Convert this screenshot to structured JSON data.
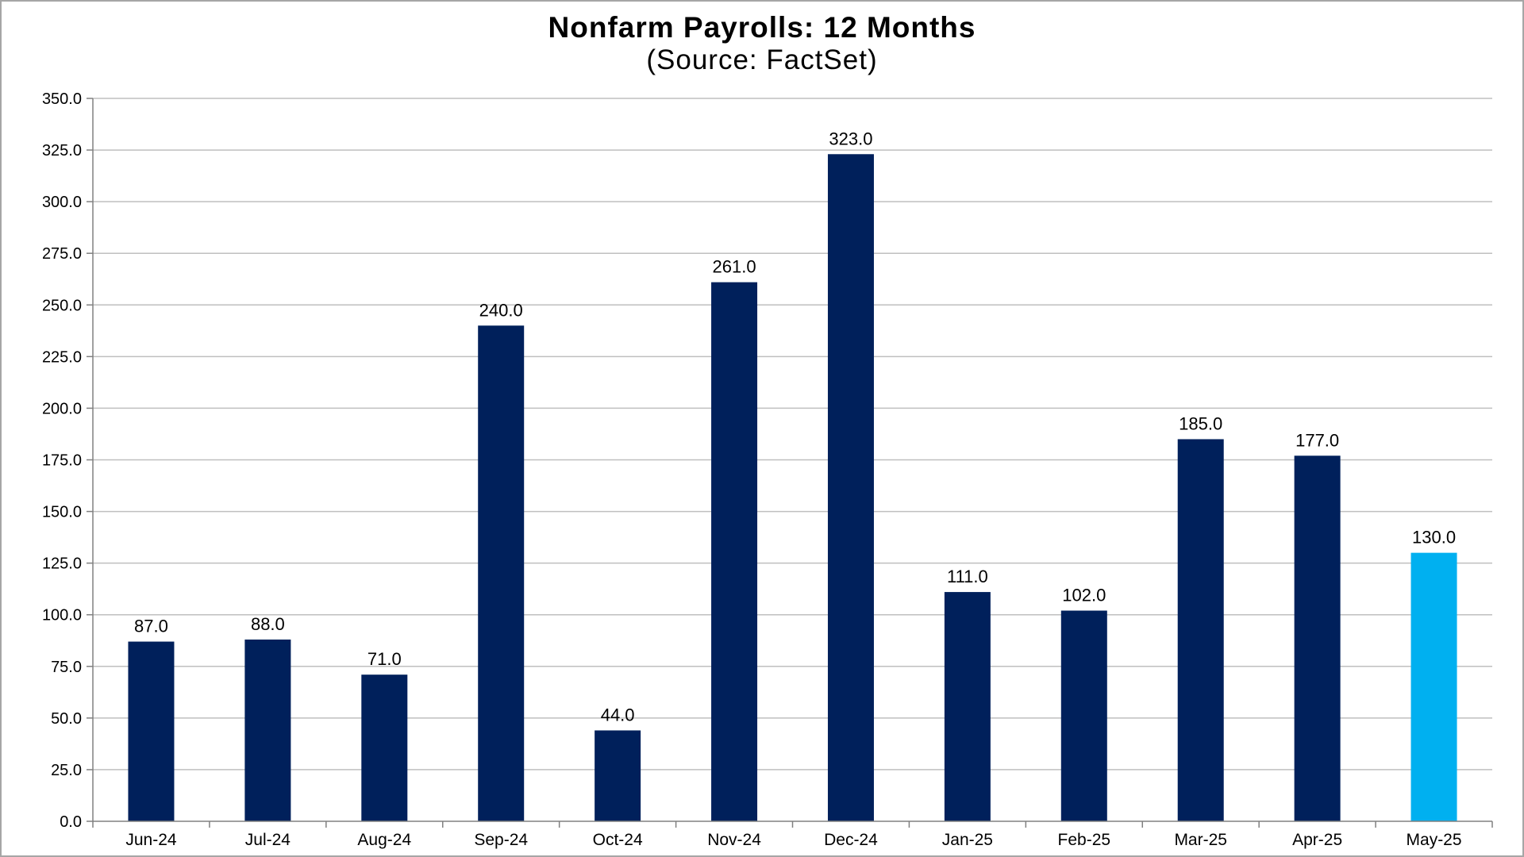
{
  "chart_data": {
    "type": "bar",
    "title": "Nonfarm Payrolls: 12 Months",
    "subtitle": "(Source: FactSet)",
    "xlabel": "",
    "ylabel": "",
    "ylim": [
      0,
      350
    ],
    "y_tick_step": 25,
    "y_tick_labels": [
      "0.0",
      "25.0",
      "50.0",
      "75.0",
      "100.0",
      "125.0",
      "150.0",
      "175.0",
      "200.0",
      "225.0",
      "250.0",
      "275.0",
      "300.0",
      "325.0",
      "350.0"
    ],
    "grid": true,
    "legend": "none",
    "categories": [
      "Jun-24",
      "Jul-24",
      "Aug-24",
      "Sep-24",
      "Oct-24",
      "Nov-24",
      "Dec-24",
      "Jan-25",
      "Feb-25",
      "Mar-25",
      "Apr-25",
      "May-25"
    ],
    "values": [
      87.0,
      88.0,
      71.0,
      240.0,
      44.0,
      261.0,
      323.0,
      111.0,
      102.0,
      185.0,
      177.0,
      130.0
    ],
    "data_labels": [
      "87.0",
      "88.0",
      "71.0",
      "240.0",
      "44.0",
      "261.0",
      "323.0",
      "111.0",
      "102.0",
      "185.0",
      "177.0",
      "130.0"
    ],
    "colors": {
      "bar": "#00205b",
      "highlight_bar": "#00b0f0",
      "gridline": "#bfbfbf",
      "axis": "#808080",
      "text": "#000000"
    },
    "highlight_index": 11
  }
}
